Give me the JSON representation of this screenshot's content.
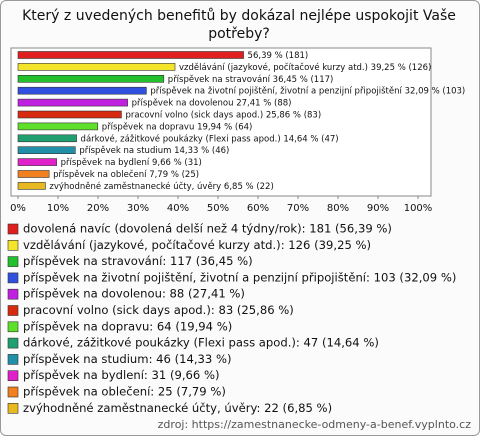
{
  "chart_data": {
    "type": "bar",
    "orientation": "horizontal",
    "title": "Který z uvedených benefitů by dokázal nejlépe uspokojit Vaše potřeby?",
    "categories": [
      "dovolená navíc (dovolená delší než 4 týdny/rok)",
      "vzdělávání (jazykové, počítačové kurzy atd.)",
      "příspěvek na stravování",
      "příspěvek na životní pojištění, životní a penzijní připojištění",
      "příspěvek na dovolenou",
      "pracovní volno (sick days apod.)",
      "příspěvek na dopravu",
      "dárkové, zážitkové poukázky (Flexi pass apod.)",
      "příspěvek na studium",
      "příspěvek na bydlení",
      "příspěvek na oblečení",
      "zvýhodněné zaměstnanecké účty, úvěry"
    ],
    "values": [
      56.39,
      39.25,
      36.45,
      32.09,
      27.41,
      25.86,
      19.94,
      14.64,
      14.33,
      9.66,
      7.79,
      6.85
    ],
    "value_labels": [
      "56,39 % (181)",
      "39,25 % (126)",
      "36,45 % (117)",
      "32,09 % (103)",
      "27,41 % (88)",
      "25,86 % (83)",
      "19,94 % (64)",
      "14,64 % (47)",
      "14,33 % (46)",
      "9,66 % (31)",
      "7,79 % (25)",
      "6,85 % (22)"
    ],
    "colors": [
      "#e02020",
      "#f4e42a",
      "#22c02a",
      "#3050e0",
      "#c020e0",
      "#d82a10",
      "#5ee02a",
      "#20a070",
      "#2090a8",
      "#e020c8",
      "#f08020",
      "#e8b820"
    ],
    "legend_labels": [
      "dovolená navíc (dovolená delší než 4 týdny/rok): 181 (56,39 %)",
      "vzdělávání (jazykové, počítačové kurzy atd.): 126 (39,25 %)",
      "příspěvek na stravování: 117 (36,45 %)",
      "příspěvek na životní pojištění, životní a penzijní připojištění: 103 (32,09 %)",
      "příspěvek na dovolenou: 88 (27,41 %)",
      "pracovní volno (sick days apod.): 83 (25,86 %)",
      "příspěvek na dopravu: 64 (19,94 %)",
      "dárkové, zážitkové poukázky (Flexi pass apod.): 47 (14,64 %)",
      "příspěvek na studium: 46 (14,33 %)",
      "příspěvek na bydlení: 31 (9,66 %)",
      "příspěvek na oblečení: 25 (7,79 %)",
      "zvýhodněné zaměstnanecké účty, úvěry: 22 (6,85 %)"
    ],
    "xlim": [
      0,
      100
    ],
    "xticks": [
      {
        "value": 0,
        "label": "0%"
      },
      {
        "value": 10,
        "label": "10%"
      },
      {
        "value": 20,
        "label": "20%"
      },
      {
        "value": 30,
        "label": "30%"
      },
      {
        "value": 40,
        "label": "40%"
      },
      {
        "value": 50,
        "label": "50%"
      },
      {
        "value": 60,
        "label": "60%"
      },
      {
        "value": 70,
        "label": "70%"
      },
      {
        "value": 80,
        "label": "80%"
      },
      {
        "value": 90,
        "label": "90%"
      },
      {
        "value": 100,
        "label": "100%"
      }
    ],
    "source": "zdroj: https://zamestnanecke-odmeny-a-benef.vyplnto.cz"
  }
}
